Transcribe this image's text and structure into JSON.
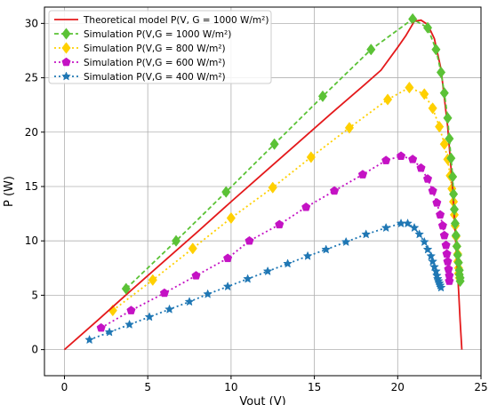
{
  "chart_data": {
    "type": "line",
    "title": "",
    "xlabel": "Vout (V)",
    "ylabel": "P (W)",
    "xlim": [
      -1.2,
      25
    ],
    "ylim": [
      -2.4,
      31.5
    ],
    "xticks": [
      0,
      5,
      10,
      15,
      20,
      25
    ],
    "yticks": [
      0,
      5,
      10,
      15,
      20,
      25,
      30
    ],
    "grid": true,
    "legend_position": "top-left",
    "series": [
      {
        "name": "Theoretical model P(V, G = 1000 W/m²)",
        "color": "#e41a1c",
        "style": "solid",
        "marker": "none",
        "x": [
          0,
          2,
          4,
          6,
          8,
          10,
          12,
          14,
          16,
          18,
          19,
          20,
          20.5,
          21,
          21.4,
          21.8,
          22.2,
          22.6,
          23.0,
          23.3,
          23.5,
          23.65,
          23.75,
          23.85
        ],
        "y": [
          0,
          2.7,
          5.45,
          8.15,
          10.85,
          13.6,
          16.3,
          19.0,
          21.7,
          24.35,
          25.7,
          27.8,
          28.9,
          30.2,
          30.3,
          29.9,
          28.6,
          25.8,
          20.5,
          14.8,
          9.5,
          5.6,
          2.6,
          0
        ]
      },
      {
        "name": "Simulation P(V,G = 1000 W/m²)",
        "color": "#5bc236",
        "style": "dashed",
        "marker": "diamond",
        "x": [
          3.7,
          6.7,
          9.7,
          12.6,
          15.5,
          18.4,
          20.9,
          21.8,
          22.3,
          22.6,
          22.8,
          23.0,
          23.1,
          23.2,
          23.3,
          23.35,
          23.4,
          23.45,
          23.5,
          23.55,
          23.6,
          23.65,
          23.7,
          23.7,
          23.75,
          23.75
        ],
        "y": [
          5.6,
          10.0,
          14.5,
          18.9,
          23.3,
          27.6,
          30.4,
          29.6,
          27.6,
          25.5,
          23.6,
          21.3,
          19.4,
          17.6,
          15.9,
          14.3,
          12.9,
          11.6,
          10.5,
          9.5,
          8.7,
          8.0,
          7.3,
          6.9,
          6.6,
          6.3
        ]
      },
      {
        "name": "Simulation P(V,G = 800 W/m²)",
        "color": "#ffd000",
        "style": "dotted",
        "marker": "diamond",
        "x": [
          2.9,
          5.3,
          7.7,
          10.0,
          12.5,
          14.8,
          17.1,
          19.4,
          20.7,
          21.6,
          22.1,
          22.5,
          22.8,
          23.0,
          23.15,
          23.25,
          23.35,
          23.4,
          23.45,
          23.5,
          23.55,
          23.6,
          23.6,
          23.65,
          23.65,
          23.7
        ],
        "y": [
          3.6,
          6.4,
          9.3,
          12.1,
          14.9,
          17.7,
          20.4,
          23.0,
          24.1,
          23.5,
          22.2,
          20.5,
          18.9,
          17.5,
          16.0,
          14.8,
          13.6,
          12.4,
          11.4,
          10.4,
          9.5,
          8.8,
          8.1,
          7.5,
          7.0,
          6.6
        ]
      },
      {
        "name": "Simulation P(V,G = 600 W/m²)",
        "color": "#c412c4",
        "style": "dotted",
        "marker": "pentagon",
        "x": [
          2.2,
          4.0,
          6.0,
          7.9,
          9.8,
          11.1,
          12.9,
          14.5,
          16.2,
          17.9,
          19.3,
          20.2,
          20.9,
          21.4,
          21.8,
          22.1,
          22.35,
          22.55,
          22.7,
          22.8,
          22.9,
          22.95,
          23.0,
          23.05,
          23.1,
          23.1
        ],
        "y": [
          2.0,
          3.6,
          5.2,
          6.8,
          8.4,
          10.0,
          11.5,
          13.1,
          14.6,
          16.1,
          17.4,
          17.8,
          17.5,
          16.7,
          15.7,
          14.6,
          13.5,
          12.4,
          11.4,
          10.5,
          9.6,
          8.8,
          8.1,
          7.4,
          6.8,
          6.3
        ]
      },
      {
        "name": "Simulation P(V,G = 400 W/m²)",
        "color": "#1f77b4",
        "style": "dotted",
        "marker": "star",
        "x": [
          1.5,
          2.7,
          3.9,
          5.1,
          6.3,
          7.5,
          8.6,
          9.8,
          11.0,
          12.2,
          13.4,
          14.6,
          15.7,
          16.9,
          18.1,
          19.3,
          20.2,
          20.6,
          21.0,
          21.3,
          21.6,
          21.8,
          22.0,
          22.1,
          22.2,
          22.3,
          22.35,
          22.4,
          22.45,
          22.5,
          22.55,
          22.6
        ],
        "y": [
          0.9,
          1.6,
          2.3,
          3.0,
          3.7,
          4.4,
          5.1,
          5.8,
          6.5,
          7.2,
          7.9,
          8.6,
          9.2,
          9.9,
          10.6,
          11.2,
          11.6,
          11.6,
          11.2,
          10.6,
          9.9,
          9.2,
          8.6,
          8.1,
          7.6,
          7.2,
          6.8,
          6.5,
          6.3,
          6.1,
          5.9,
          5.7
        ]
      }
    ]
  }
}
